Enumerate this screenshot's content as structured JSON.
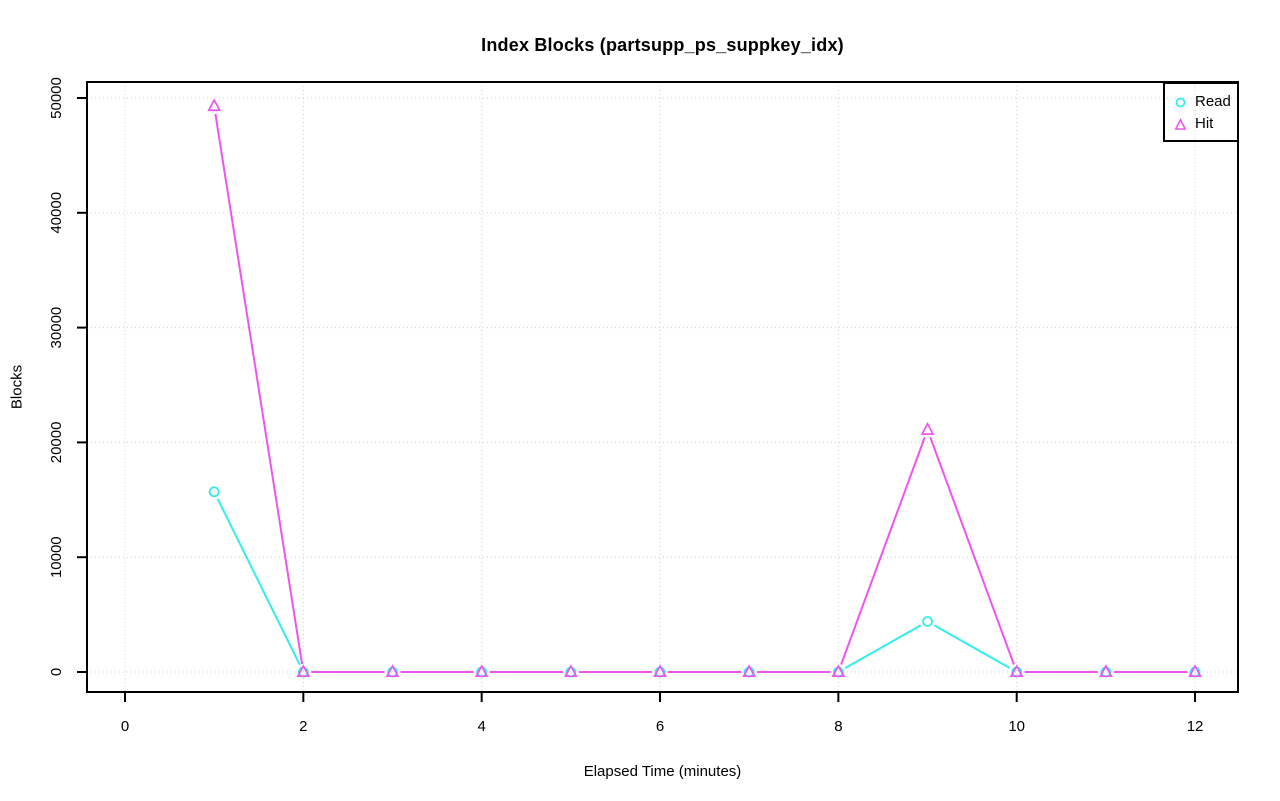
{
  "page": {
    "background": "#ffffff"
  },
  "chart_data": {
    "type": "line",
    "title": "Index Blocks (partsupp_ps_suppkey_idx)",
    "xlabel": "Elapsed Time (minutes)",
    "ylabel": "Blocks",
    "x": [
      1,
      2,
      3,
      4,
      5,
      6,
      7,
      8,
      9,
      10,
      11,
      12
    ],
    "series": [
      {
        "name": "Read",
        "marker": "circle",
        "color": "#33EDED",
        "values": [
          15700,
          0,
          0,
          0,
          0,
          0,
          0,
          0,
          4400,
          0,
          0,
          0
        ]
      },
      {
        "name": "Hit",
        "marker": "triangle",
        "color": "#EE55EE",
        "values": [
          49300,
          0,
          0,
          0,
          0,
          0,
          0,
          0,
          21100,
          0,
          0,
          0
        ]
      }
    ],
    "xticks": [
      0,
      2,
      4,
      6,
      8,
      10,
      12
    ],
    "yticks": [
      0,
      10000,
      20000,
      30000,
      40000,
      50000
    ],
    "xlim": [
      0,
      12
    ],
    "ylim": [
      0,
      50000
    ],
    "grid": true,
    "grid_color": "#cdcdcd",
    "legend_position": "topright"
  }
}
